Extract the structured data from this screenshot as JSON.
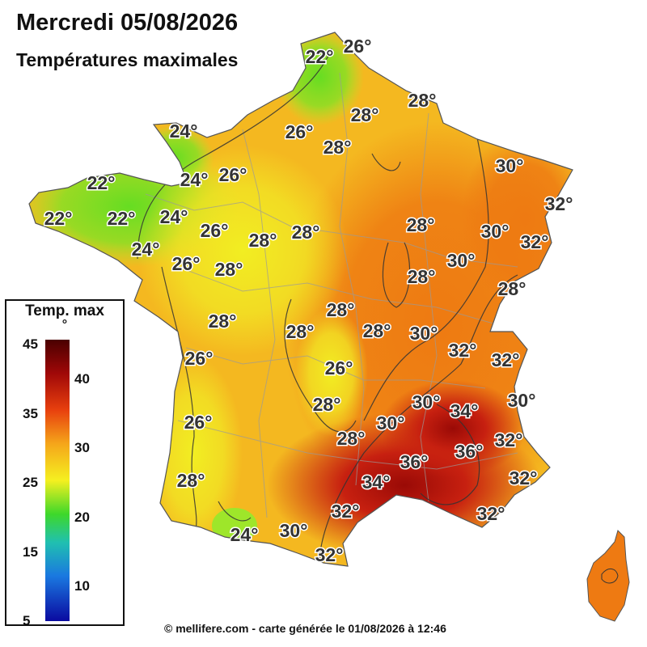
{
  "header": {
    "title": "Mercredi 05/08/2026",
    "subtitle": "Températures maximales"
  },
  "map": {
    "labels": [
      "26°",
      "22°",
      "28°",
      "24°",
      "26°",
      "28°",
      "28°",
      "22°",
      "24°",
      "26°",
      "30°",
      "22°",
      "32°",
      "22°",
      "24°",
      "26°",
      "28°",
      "28°",
      "28°",
      "28°",
      "30°",
      "24°",
      "32°",
      "26°",
      "28°",
      "30°",
      "28°",
      "28°",
      "28°",
      "28°",
      "28°",
      "30°",
      "26°",
      "32°",
      "32°",
      "26°",
      "30°",
      "28°",
      "34°",
      "26°",
      "30°",
      "32°",
      "28°",
      "36°",
      "36°",
      "28°",
      "30°",
      "34°",
      "32°",
      "32°",
      "32°",
      "24°",
      "30°",
      "32°"
    ],
    "colors": {
      "cool_green": "#66dd22",
      "yellow": "#f2ee22",
      "orange": "#f4b820",
      "deep_orange": "#ee7a12",
      "hot_red": "#c72010",
      "very_hot": "#9a0a06"
    }
  },
  "legend": {
    "title": "Temp. max",
    "unit": "°",
    "left_ticks": [
      "45",
      "35",
      "25",
      "15",
      "5"
    ],
    "right_ticks": [
      "40",
      "30",
      "20",
      "10"
    ],
    "range": [
      5,
      45
    ]
  },
  "footer": {
    "credit": "© mellifere.com - carte générée le 01/08/2026 à 12:46"
  }
}
